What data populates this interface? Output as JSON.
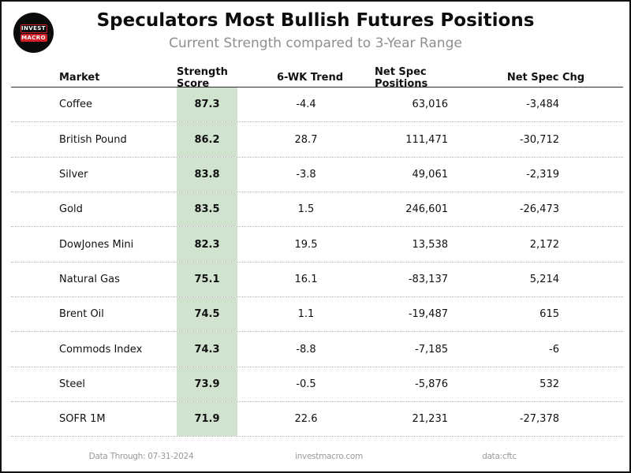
{
  "title": "Speculators Most Bullish Futures Positions",
  "subtitle": "Current Strength compared to 3-Year Range",
  "logo": {
    "line1": "INVEST",
    "line2": "MACRO"
  },
  "table": {
    "columns": [
      "Market",
      "Strength Score",
      "6-WK Trend",
      "Net Spec Positions",
      "Net Spec Chg"
    ],
    "rows": [
      {
        "market": "Coffee",
        "score": "87.3",
        "trend": "-4.4",
        "net_spec_positions": "63,016",
        "net_spec_chg": "-3,484"
      },
      {
        "market": "British Pound",
        "score": "86.2",
        "trend": "28.7",
        "net_spec_positions": "111,471",
        "net_spec_chg": "-30,712"
      },
      {
        "market": "Silver",
        "score": "83.8",
        "trend": "-3.8",
        "net_spec_positions": "49,061",
        "net_spec_chg": "-2,319"
      },
      {
        "market": "Gold",
        "score": "83.5",
        "trend": "1.5",
        "net_spec_positions": "246,601",
        "net_spec_chg": "-26,473"
      },
      {
        "market": "DowJones Mini",
        "score": "82.3",
        "trend": "19.5",
        "net_spec_positions": "13,538",
        "net_spec_chg": "2,172"
      },
      {
        "market": "Natural Gas",
        "score": "75.1",
        "trend": "16.1",
        "net_spec_positions": "-83,137",
        "net_spec_chg": "5,214"
      },
      {
        "market": "Brent Oil",
        "score": "74.5",
        "trend": "1.1",
        "net_spec_positions": "-19,487",
        "net_spec_chg": "615"
      },
      {
        "market": "Commods Index",
        "score": "74.3",
        "trend": "-8.8",
        "net_spec_positions": "-7,185",
        "net_spec_chg": "-6"
      },
      {
        "market": "Steel",
        "score": "73.9",
        "trend": "-0.5",
        "net_spec_positions": "-5,876",
        "net_spec_chg": "532"
      },
      {
        "market": "SOFR 1M",
        "score": "71.9",
        "trend": "22.6",
        "net_spec_positions": "21,231",
        "net_spec_chg": "-27,378"
      }
    ]
  },
  "footer": {
    "data_through": "Data Through: 07-31-2024",
    "website": "investmacro.com",
    "source": "data:cftc"
  },
  "colors": {
    "score_band": "#cfe3cf",
    "logo_red": "#d21f26",
    "subtitle_gray": "#8e8e8e",
    "footer_gray": "#999999"
  },
  "chart_data": {
    "type": "table",
    "title": "Speculators Most Bullish Futures Positions",
    "subtitle": "Current Strength compared to 3-Year Range",
    "columns": [
      "Market",
      "Strength Score",
      "6-WK Trend",
      "Net Spec Positions",
      "Net Spec Chg"
    ],
    "rows": [
      [
        "Coffee",
        87.3,
        -4.4,
        63016,
        -3484
      ],
      [
        "British Pound",
        86.2,
        28.7,
        111471,
        -30712
      ],
      [
        "Silver",
        83.8,
        -3.8,
        49061,
        -2319
      ],
      [
        "Gold",
        83.5,
        1.5,
        246601,
        -26473
      ],
      [
        "DowJones Mini",
        82.3,
        19.5,
        13538,
        2172
      ],
      [
        "Natural Gas",
        75.1,
        16.1,
        -83137,
        5214
      ],
      [
        "Brent Oil",
        74.5,
        1.1,
        -19487,
        615
      ],
      [
        "Commods Index",
        74.3,
        -8.8,
        -7185,
        -6
      ],
      [
        "Steel",
        73.9,
        -0.5,
        -5876,
        532
      ],
      [
        "SOFR 1M",
        71.9,
        22.6,
        21231,
        -27378
      ]
    ],
    "layout_hints": {
      "score_column_highlight": "#cfe3cf",
      "row_separator": "dotted",
      "header_separator": "solid"
    }
  }
}
